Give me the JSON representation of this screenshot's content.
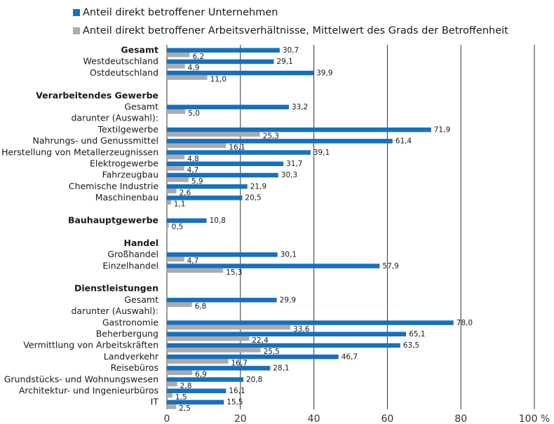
{
  "chart_data": {
    "type": "hbar",
    "categories": [
      "Gesamt",
      "Westdeutschland",
      "Ostdeutschland",
      null,
      "Verarbeitendes Gewerbe",
      "Gesamt",
      "darunter (Auswahl):",
      "Textilgewerbe",
      "Nahrungs- und Genussmittel",
      "Herstellung von Metallerzeugnissen",
      "Elektrogewerbe",
      "Fahrzeugbau",
      "Chemische Industrie",
      "Maschinenbau",
      null,
      "Bauhauptgewerbe",
      null,
      "Handel",
      "Großhandel",
      "Einzelhandel",
      null,
      "Dienstleistungen",
      "Gesamt",
      "darunter (Auswahl):",
      "Gastronomie",
      "Beherbergung",
      "Vermittlung von Arbeitskräften",
      "Landverkehr",
      "Reisebüros",
      "Grundstücks- und Wohnungswesen",
      "Architektur- und Ingenieurbüros",
      "IT"
    ],
    "bold_categories": [
      0,
      4,
      15,
      17,
      21
    ],
    "series": [
      {
        "name": "Anteil direkt betroffener Unternehmen",
        "color": "#1670c0",
        "values": [
          30.7,
          29.1,
          39.9,
          null,
          null,
          33.2,
          null,
          71.9,
          61.4,
          39.1,
          31.7,
          30.3,
          21.9,
          20.5,
          null,
          10.8,
          null,
          null,
          30.1,
          57.9,
          null,
          null,
          29.9,
          null,
          78.0,
          65.1,
          63.5,
          46.7,
          28.1,
          20.8,
          16.1,
          15.5
        ],
        "value_labels": [
          "30,7",
          "29,1",
          "39,9",
          null,
          null,
          "33,2",
          null,
          "71,9",
          "61,4",
          "39,1",
          "31,7",
          "30,3",
          "21,9",
          "20,5",
          null,
          "10,8",
          null,
          null,
          "30,1",
          "57,9",
          null,
          null,
          "29,9",
          null,
          "78,0",
          "65,1",
          "63,5",
          "46,7",
          "28,1",
          "20,8",
          "16,1",
          "15,5"
        ]
      },
      {
        "name": "Anteil direkt betroffener Arbeitsverhältnisse, Mittelwert des Grads der Betroffenheit",
        "color": "#ababab",
        "values": [
          6.2,
          4.9,
          11.0,
          null,
          null,
          5.0,
          null,
          25.3,
          16.1,
          4.8,
          4.7,
          5.9,
          2.6,
          1.1,
          null,
          0.5,
          null,
          null,
          4.7,
          15.3,
          null,
          null,
          6.8,
          null,
          33.6,
          22.4,
          25.5,
          16.7,
          6.9,
          2.8,
          1.5,
          2.5
        ],
        "value_labels": [
          "6,2",
          "4,9",
          "11,0",
          null,
          null,
          "5,0",
          null,
          "25,3",
          "16,1",
          "4,8",
          "4,7",
          "5,9",
          "2,6",
          "1,1",
          null,
          "0,5",
          null,
          null,
          "4,7",
          "15,3",
          null,
          null,
          "6,8",
          null,
          "33,6",
          "22,4",
          "25,5",
          "16,7",
          "6,9",
          "2,8",
          "1,5",
          "2,5"
        ]
      }
    ],
    "xlim": [
      0,
      100
    ],
    "xticks": [
      0,
      20,
      40,
      60,
      80,
      {
        "value": 100,
        "label": "100 %"
      }
    ],
    "grid": true
  }
}
